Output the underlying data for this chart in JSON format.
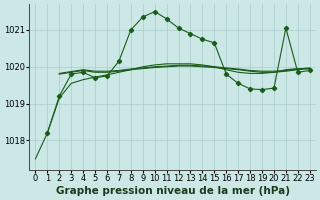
{
  "bg_color": "#cce8e6",
  "line_color": "#1a5c1a",
  "grid_color": "#aacccc",
  "title": "Graphe pression niveau de la mer (hPa)",
  "xlim": [
    -0.5,
    23.5
  ],
  "ylim": [
    1017.2,
    1021.7
  ],
  "yticks": [
    1018,
    1019,
    1020,
    1021
  ],
  "xticks": [
    0,
    1,
    2,
    3,
    4,
    5,
    6,
    7,
    8,
    9,
    10,
    11,
    12,
    13,
    14,
    15,
    16,
    17,
    18,
    19,
    20,
    21,
    22,
    23
  ],
  "series_smooth_x": [
    0,
    1,
    2,
    3,
    4,
    5,
    6,
    7,
    8,
    9,
    10,
    11,
    12,
    13,
    14,
    15,
    16,
    17,
    18,
    19,
    20,
    21,
    22,
    23
  ],
  "series_smooth_y": [
    1017.5,
    1018.2,
    1019.15,
    1019.55,
    1019.65,
    1019.72,
    1019.78,
    1019.85,
    1019.92,
    1020.0,
    1020.05,
    1020.08,
    1020.08,
    1020.08,
    1020.05,
    1020.0,
    1019.92,
    1019.85,
    1019.82,
    1019.82,
    1019.85,
    1019.92,
    1019.95,
    1019.95
  ],
  "series_flat1_x": [
    2,
    3,
    4,
    5,
    6,
    7,
    8,
    9,
    10,
    11,
    12,
    13,
    14,
    15,
    16,
    17,
    18,
    19,
    20,
    21,
    22,
    23
  ],
  "series_flat1_y": [
    1019.8,
    1019.85,
    1019.9,
    1019.85,
    1019.85,
    1019.88,
    1019.92,
    1019.95,
    1019.98,
    1020.0,
    1020.02,
    1020.02,
    1020.0,
    1019.98,
    1019.95,
    1019.92,
    1019.88,
    1019.85,
    1019.85,
    1019.88,
    1019.92,
    1019.95
  ],
  "series_flat2_x": [
    2,
    3,
    4,
    5,
    6,
    7,
    8,
    9,
    10,
    11,
    12,
    13,
    14,
    15,
    16,
    17,
    18,
    19,
    20,
    21,
    22,
    23
  ],
  "series_flat2_y": [
    1019.82,
    1019.87,
    1019.92,
    1019.88,
    1019.88,
    1019.9,
    1019.94,
    1019.97,
    1020.0,
    1020.02,
    1020.04,
    1020.04,
    1020.02,
    1020.0,
    1019.97,
    1019.94,
    1019.9,
    1019.88,
    1019.88,
    1019.9,
    1019.94,
    1019.97
  ],
  "series_spike_x": [
    1,
    2,
    3,
    4,
    5,
    6,
    7,
    8,
    9,
    10,
    11,
    12,
    13,
    14,
    15,
    16,
    17,
    18,
    19,
    20,
    21,
    22,
    23
  ],
  "series_spike_y": [
    1018.2,
    1019.2,
    1019.8,
    1019.85,
    1019.7,
    1019.75,
    1020.15,
    1021.0,
    1021.35,
    1021.5,
    1021.3,
    1021.05,
    1020.9,
    1020.75,
    1020.65,
    1019.8,
    1019.55,
    1019.4,
    1019.38,
    1019.42,
    1021.05,
    1019.85,
    1019.9
  ],
  "title_fontsize": 7.5,
  "tick_fontsize": 6
}
